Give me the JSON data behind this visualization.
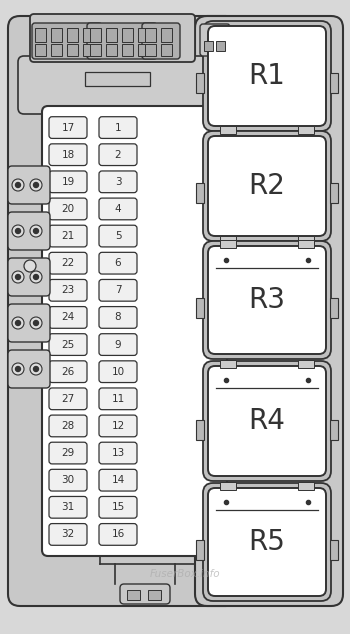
{
  "bg_color": "#d8d8d8",
  "line_color": "#333333",
  "white_fill": "#ffffff",
  "light_grey": "#c8c8c8",
  "mid_grey": "#b0b0b0",
  "fuse_left_col": [
    "17",
    "18",
    "19",
    "20",
    "21",
    "22",
    "23",
    "24",
    "25",
    "26",
    "27",
    "28",
    "29",
    "30",
    "31",
    "32"
  ],
  "fuse_right_col": [
    "1",
    "2",
    "3",
    "4",
    "5",
    "6",
    "7",
    "8",
    "9",
    "10",
    "11",
    "12",
    "13",
    "14",
    "15",
    "16"
  ],
  "relay_labels": [
    "R1",
    "R2",
    "R3",
    "R4",
    "R5"
  ],
  "watermark": "FuserBox.info",
  "figsize": [
    3.5,
    6.34
  ],
  "dpi": 100
}
